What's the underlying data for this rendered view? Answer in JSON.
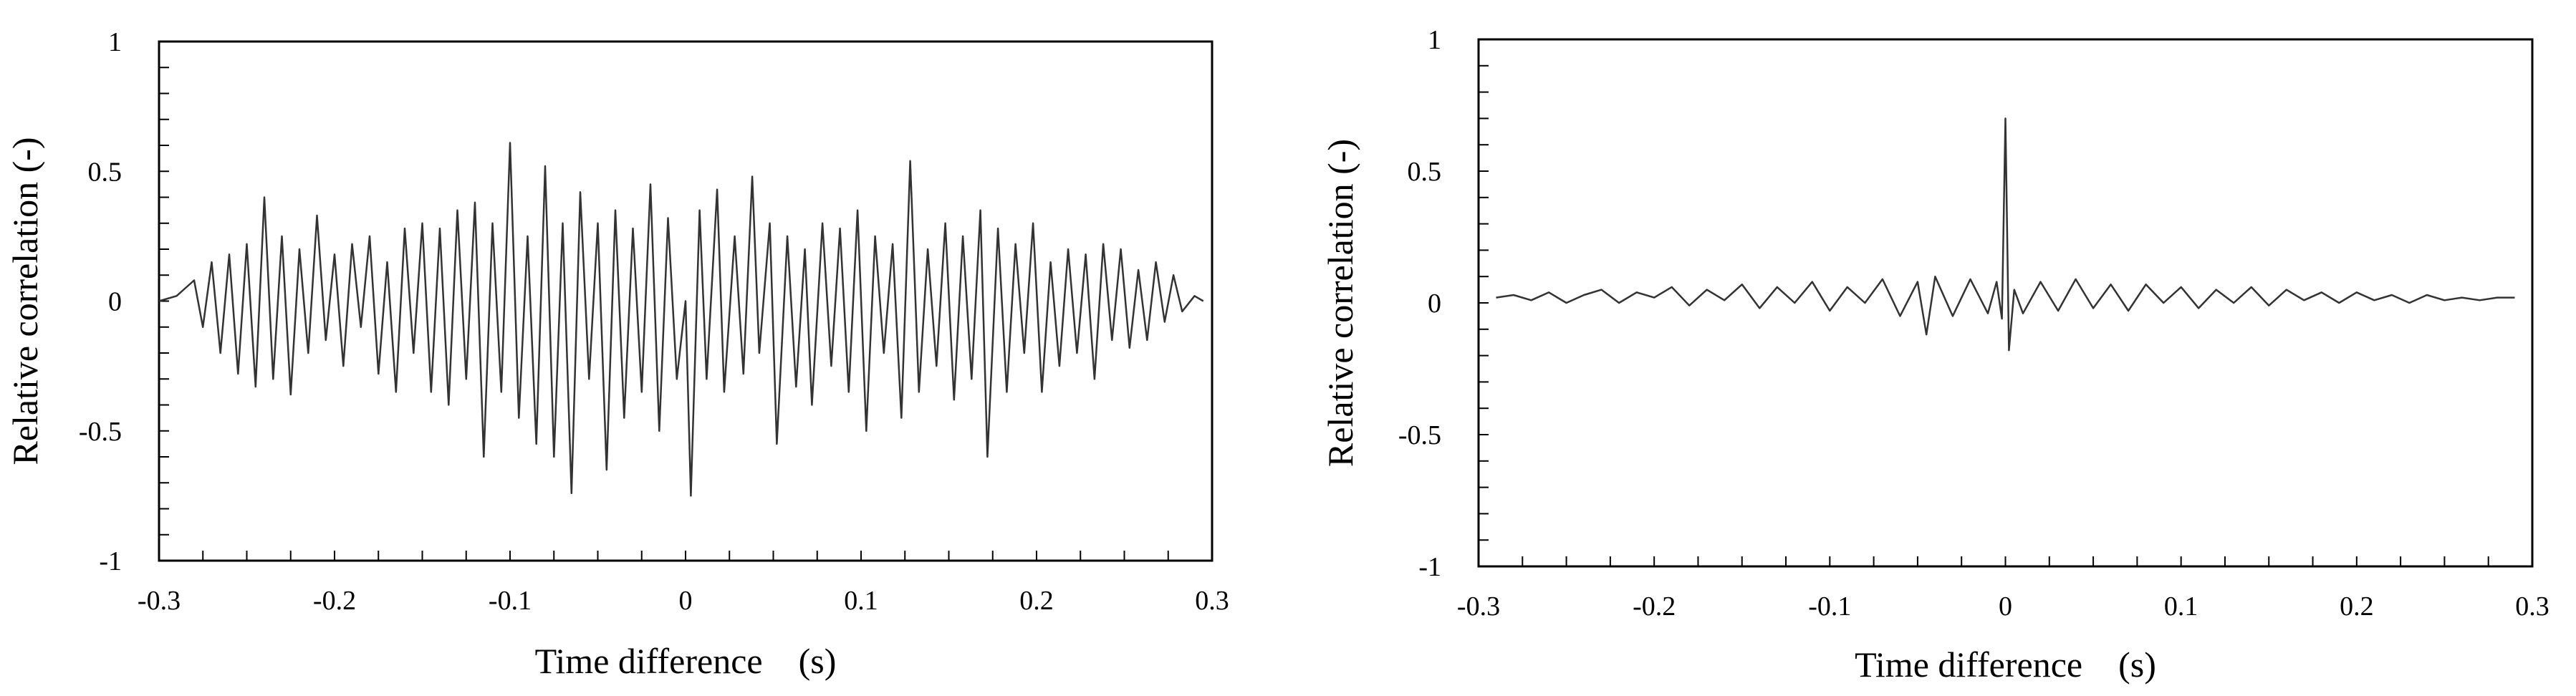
{
  "chart_data": [
    {
      "type": "line",
      "title": "",
      "xlabel": "Time difference    (s)",
      "ylabel": "Relative correlation  (-)",
      "xlim": [
        -0.3,
        0.3
      ],
      "ylim": [
        -1,
        1
      ],
      "xticks": [
        -0.3,
        -0.2,
        -0.1,
        0,
        0.1,
        0.2,
        0.3
      ],
      "xtick_labels": [
        "-0.3",
        "-0.2",
        "-0.1",
        "0",
        "0.1",
        "0.2",
        "0.3"
      ],
      "yticks": [
        -1,
        -0.5,
        0,
        0.5,
        1
      ],
      "ytick_labels": [
        "-1",
        "-0.5",
        "0",
        "0.5",
        "1"
      ],
      "grid": false,
      "legend": "none",
      "series": [
        {
          "color": "#333333",
          "points": [
            [
              -0.3,
              0.0
            ],
            [
              -0.29,
              0.02
            ],
            [
              -0.28,
              0.08
            ],
            [
              -0.275,
              -0.1
            ],
            [
              -0.27,
              0.15
            ],
            [
              -0.265,
              -0.2
            ],
            [
              -0.26,
              0.18
            ],
            [
              -0.255,
              -0.28
            ],
            [
              -0.25,
              0.22
            ],
            [
              -0.245,
              -0.33
            ],
            [
              -0.24,
              0.4
            ],
            [
              -0.235,
              -0.3
            ],
            [
              -0.23,
              0.25
            ],
            [
              -0.225,
              -0.36
            ],
            [
              -0.22,
              0.2
            ],
            [
              -0.215,
              -0.2
            ],
            [
              -0.21,
              0.33
            ],
            [
              -0.205,
              -0.15
            ],
            [
              -0.2,
              0.18
            ],
            [
              -0.195,
              -0.25
            ],
            [
              -0.19,
              0.22
            ],
            [
              -0.185,
              -0.1
            ],
            [
              -0.18,
              0.25
            ],
            [
              -0.175,
              -0.28
            ],
            [
              -0.17,
              0.15
            ],
            [
              -0.165,
              -0.35
            ],
            [
              -0.16,
              0.28
            ],
            [
              -0.155,
              -0.2
            ],
            [
              -0.15,
              0.3
            ],
            [
              -0.145,
              -0.35
            ],
            [
              -0.14,
              0.28
            ],
            [
              -0.135,
              -0.4
            ],
            [
              -0.13,
              0.35
            ],
            [
              -0.125,
              -0.3
            ],
            [
              -0.12,
              0.38
            ],
            [
              -0.115,
              -0.6
            ],
            [
              -0.11,
              0.3
            ],
            [
              -0.105,
              -0.35
            ],
            [
              -0.1,
              0.61
            ],
            [
              -0.095,
              -0.45
            ],
            [
              -0.09,
              0.25
            ],
            [
              -0.085,
              -0.55
            ],
            [
              -0.08,
              0.52
            ],
            [
              -0.075,
              -0.6
            ],
            [
              -0.07,
              0.3
            ],
            [
              -0.065,
              -0.74
            ],
            [
              -0.06,
              0.42
            ],
            [
              -0.055,
              -0.3
            ],
            [
              -0.05,
              0.3
            ],
            [
              -0.045,
              -0.65
            ],
            [
              -0.04,
              0.35
            ],
            [
              -0.035,
              -0.45
            ],
            [
              -0.03,
              0.28
            ],
            [
              -0.025,
              -0.35
            ],
            [
              -0.02,
              0.45
            ],
            [
              -0.015,
              -0.5
            ],
            [
              -0.01,
              0.32
            ],
            [
              -0.005,
              -0.3
            ],
            [
              0.0,
              0.0
            ],
            [
              0.003,
              -0.75
            ],
            [
              0.008,
              0.35
            ],
            [
              0.012,
              -0.3
            ],
            [
              0.018,
              0.43
            ],
            [
              0.022,
              -0.35
            ],
            [
              0.028,
              0.25
            ],
            [
              0.033,
              -0.28
            ],
            [
              0.038,
              0.48
            ],
            [
              0.042,
              -0.2
            ],
            [
              0.048,
              0.3
            ],
            [
              0.052,
              -0.55
            ],
            [
              0.058,
              0.25
            ],
            [
              0.063,
              -0.33
            ],
            [
              0.068,
              0.2
            ],
            [
              0.072,
              -0.4
            ],
            [
              0.078,
              0.3
            ],
            [
              0.083,
              -0.25
            ],
            [
              0.088,
              0.28
            ],
            [
              0.093,
              -0.35
            ],
            [
              0.098,
              0.35
            ],
            [
              0.103,
              -0.5
            ],
            [
              0.108,
              0.25
            ],
            [
              0.113,
              -0.2
            ],
            [
              0.118,
              0.22
            ],
            [
              0.123,
              -0.45
            ],
            [
              0.128,
              0.54
            ],
            [
              0.133,
              -0.35
            ],
            [
              0.138,
              0.2
            ],
            [
              0.143,
              -0.25
            ],
            [
              0.148,
              0.3
            ],
            [
              0.153,
              -0.38
            ],
            [
              0.158,
              0.25
            ],
            [
              0.163,
              -0.3
            ],
            [
              0.168,
              0.35
            ],
            [
              0.172,
              -0.6
            ],
            [
              0.178,
              0.28
            ],
            [
              0.183,
              -0.35
            ],
            [
              0.188,
              0.22
            ],
            [
              0.193,
              -0.2
            ],
            [
              0.198,
              0.3
            ],
            [
              0.203,
              -0.35
            ],
            [
              0.208,
              0.15
            ],
            [
              0.213,
              -0.25
            ],
            [
              0.218,
              0.2
            ],
            [
              0.223,
              -0.2
            ],
            [
              0.228,
              0.18
            ],
            [
              0.233,
              -0.3
            ],
            [
              0.238,
              0.22
            ],
            [
              0.243,
              -0.15
            ],
            [
              0.248,
              0.2
            ],
            [
              0.253,
              -0.18
            ],
            [
              0.258,
              0.12
            ],
            [
              0.263,
              -0.15
            ],
            [
              0.268,
              0.15
            ],
            [
              0.273,
              -0.08
            ],
            [
              0.278,
              0.1
            ],
            [
              0.283,
              -0.04
            ],
            [
              0.29,
              0.02
            ],
            [
              0.295,
              0.0
            ]
          ]
        }
      ]
    },
    {
      "type": "line",
      "title": "",
      "xlabel": "Time difference    (s)",
      "ylabel": "Relative correlation (-)",
      "xlim": [
        -0.3,
        0.3
      ],
      "ylim": [
        -1,
        1
      ],
      "xticks": [
        -0.3,
        -0.2,
        -0.1,
        0,
        0.1,
        0.2,
        0.3
      ],
      "xtick_labels": [
        "-0.3",
        "-0.2",
        "-0.1",
        "0",
        "0.1",
        "0.2",
        "0.3"
      ],
      "yticks": [
        -1,
        -0.5,
        0,
        0.5,
        1
      ],
      "ytick_labels": [
        "-1",
        "-0.5",
        "0",
        "0.5",
        "1"
      ],
      "grid": false,
      "legend": "none",
      "series": [
        {
          "color": "#333333",
          "points": [
            [
              -0.29,
              0.02
            ],
            [
              -0.28,
              0.03
            ],
            [
              -0.27,
              0.01
            ],
            [
              -0.26,
              0.04
            ],
            [
              -0.25,
              0.0
            ],
            [
              -0.24,
              0.03
            ],
            [
              -0.23,
              0.05
            ],
            [
              -0.22,
              0.0
            ],
            [
              -0.21,
              0.04
            ],
            [
              -0.2,
              0.02
            ],
            [
              -0.19,
              0.06
            ],
            [
              -0.18,
              -0.01
            ],
            [
              -0.17,
              0.05
            ],
            [
              -0.16,
              0.01
            ],
            [
              -0.15,
              0.07
            ],
            [
              -0.14,
              -0.02
            ],
            [
              -0.13,
              0.06
            ],
            [
              -0.12,
              0.0
            ],
            [
              -0.11,
              0.08
            ],
            [
              -0.1,
              -0.03
            ],
            [
              -0.09,
              0.06
            ],
            [
              -0.08,
              0.0
            ],
            [
              -0.07,
              0.09
            ],
            [
              -0.06,
              -0.05
            ],
            [
              -0.05,
              0.08
            ],
            [
              -0.045,
              -0.12
            ],
            [
              -0.04,
              0.1
            ],
            [
              -0.03,
              -0.05
            ],
            [
              -0.02,
              0.09
            ],
            [
              -0.01,
              -0.04
            ],
            [
              -0.005,
              0.08
            ],
            [
              -0.002,
              -0.06
            ],
            [
              0.0,
              0.7
            ],
            [
              0.002,
              -0.18
            ],
            [
              0.005,
              0.05
            ],
            [
              0.01,
              -0.04
            ],
            [
              0.02,
              0.08
            ],
            [
              0.03,
              -0.03
            ],
            [
              0.04,
              0.09
            ],
            [
              0.05,
              -0.02
            ],
            [
              0.06,
              0.07
            ],
            [
              0.07,
              -0.03
            ],
            [
              0.08,
              0.07
            ],
            [
              0.09,
              0.0
            ],
            [
              0.1,
              0.06
            ],
            [
              0.11,
              -0.02
            ],
            [
              0.12,
              0.05
            ],
            [
              0.13,
              0.0
            ],
            [
              0.14,
              0.06
            ],
            [
              0.15,
              -0.01
            ],
            [
              0.16,
              0.05
            ],
            [
              0.17,
              0.01
            ],
            [
              0.18,
              0.04
            ],
            [
              0.19,
              0.0
            ],
            [
              0.2,
              0.04
            ],
            [
              0.21,
              0.01
            ],
            [
              0.22,
              0.03
            ],
            [
              0.23,
              0.0
            ],
            [
              0.24,
              0.03
            ],
            [
              0.25,
              0.01
            ],
            [
              0.26,
              0.02
            ],
            [
              0.27,
              0.01
            ],
            [
              0.28,
              0.02
            ],
            [
              0.29,
              0.02
            ]
          ]
        }
      ]
    }
  ]
}
